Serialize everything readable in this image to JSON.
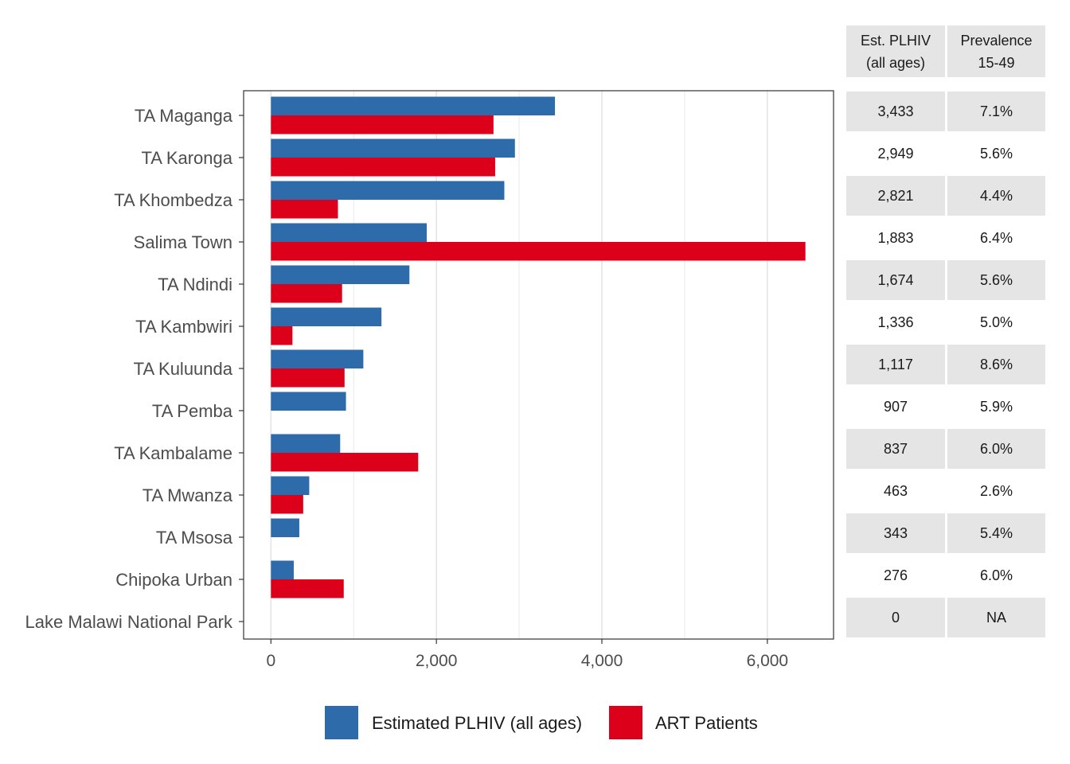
{
  "colors": {
    "plhiv": "#2E6BAA",
    "art": "#DC001B",
    "grid": "#E5E5E5",
    "panel_border": "#333333",
    "table_shade": "#E5E5E5"
  },
  "chart_data": {
    "type": "bar",
    "orientation": "horizontal",
    "categories": [
      "TA Maganga",
      "TA Karonga",
      "TA Khombedza",
      "Salima Town",
      "TA Ndindi",
      "TA Kambwiri",
      "TA Kuluunda",
      "TA Pemba",
      "TA Kambalame",
      "TA Mwanza",
      "TA Msosa",
      "Chipoka Urban",
      "Lake Malawi National Park"
    ],
    "series": [
      {
        "name": "Estimated PLHIV (all ages)",
        "values": [
          3433,
          2949,
          2821,
          1883,
          1674,
          1336,
          1117,
          907,
          837,
          463,
          343,
          276,
          0
        ]
      },
      {
        "name": "ART Patients",
        "values": [
          2690,
          2710,
          810,
          6460,
          860,
          260,
          890,
          0,
          1780,
          390,
          0,
          880,
          0
        ]
      }
    ],
    "xlim": [
      -330,
      6800
    ],
    "x_ticks": [
      0,
      2000,
      4000,
      6000
    ],
    "x_tick_labels": [
      "0",
      "2,000",
      "4,000",
      "6,000"
    ],
    "grid": true,
    "legend_position": "bottom"
  },
  "table": {
    "headers": [
      {
        "line1": "Est. PLHIV",
        "line2": "(all ages)"
      },
      {
        "line1": "Prevalence",
        "line2": "15-49"
      }
    ],
    "rows": [
      [
        "3,433",
        "7.1%"
      ],
      [
        "2,949",
        "5.6%"
      ],
      [
        "2,821",
        "4.4%"
      ],
      [
        "1,883",
        "6.4%"
      ],
      [
        "1,674",
        "5.6%"
      ],
      [
        "1,336",
        "5.0%"
      ],
      [
        "1,117",
        "8.6%"
      ],
      [
        "907",
        "5.9%"
      ],
      [
        "837",
        "6.0%"
      ],
      [
        "463",
        "2.6%"
      ],
      [
        "343",
        "5.4%"
      ],
      [
        "276",
        "6.0%"
      ],
      [
        "0",
        "NA"
      ]
    ]
  }
}
